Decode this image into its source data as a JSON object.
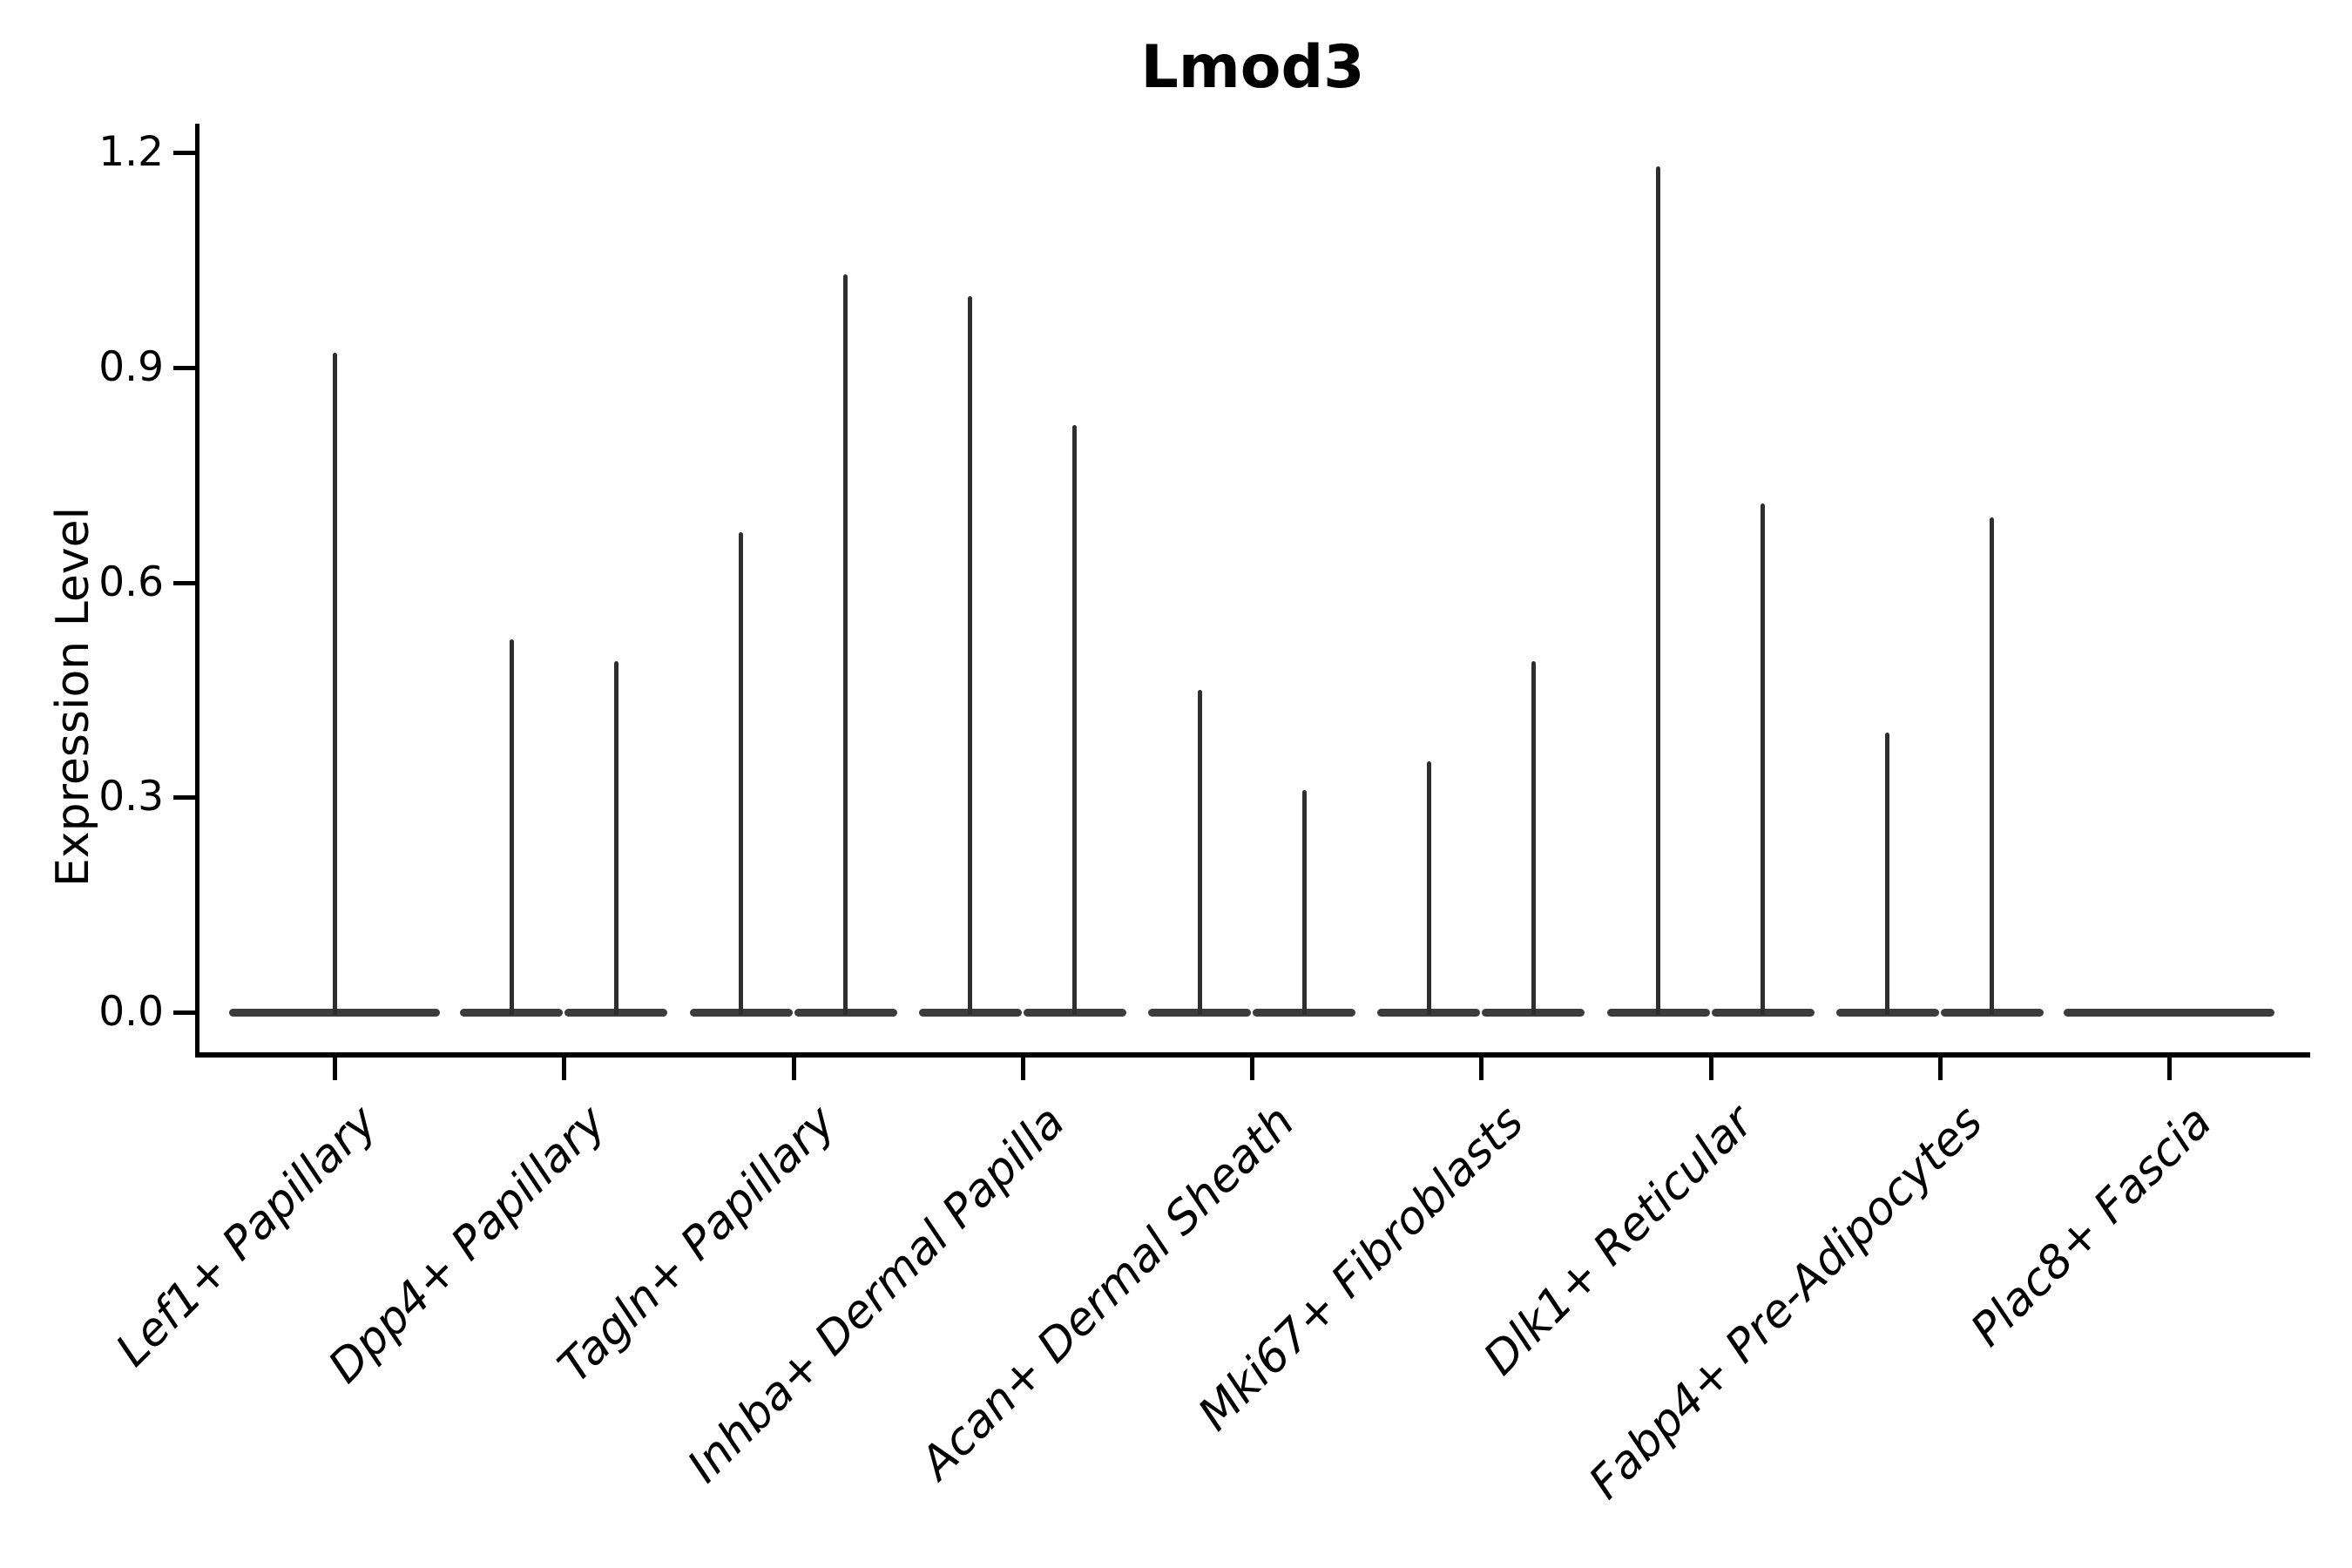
{
  "chart_data": {
    "type": "violin",
    "title": "Lmod3",
    "ylabel": "Expression Level",
    "xlabel": "",
    "yticks": [
      0.0,
      0.3,
      0.6,
      0.9,
      1.2
    ],
    "ylim": [
      0,
      1.2
    ],
    "grid": false,
    "legend": "none",
    "note": "Each category shows thin spike-like violins (expression concentrated at 0 with a narrow density spike up to the max value). Categories with two values have two side-by-side dodged violins; Lef1+ Papillary and Plac8+ Fascia each have a single full-width violin.",
    "categories": [
      "Lef1+ Papillary",
      "Dpp4+ Papillary",
      "Tagln+ Papillary",
      "Inhba+ Dermal Papilla",
      "Acan+ Dermal Sheath",
      "Mki67+ Fibroblasts",
      "Dlk1+ Reticular",
      "Fabp4+ Pre-Adipocytes",
      "Plac8+ Fascia"
    ],
    "violin_max_expression": [
      [
        0.92
      ],
      [
        0.52,
        0.49
      ],
      [
        0.67,
        1.03
      ],
      [
        1.0,
        0.82
      ],
      [
        0.45,
        0.31
      ],
      [
        0.35,
        0.49
      ],
      [
        1.18,
        0.71
      ],
      [
        0.39,
        0.69
      ],
      [
        0.0
      ]
    ],
    "colors": {
      "spike": "#2e2e2e",
      "baseline": "#3c3c3c",
      "axis": "#000000",
      "background": "#ffffff"
    }
  }
}
